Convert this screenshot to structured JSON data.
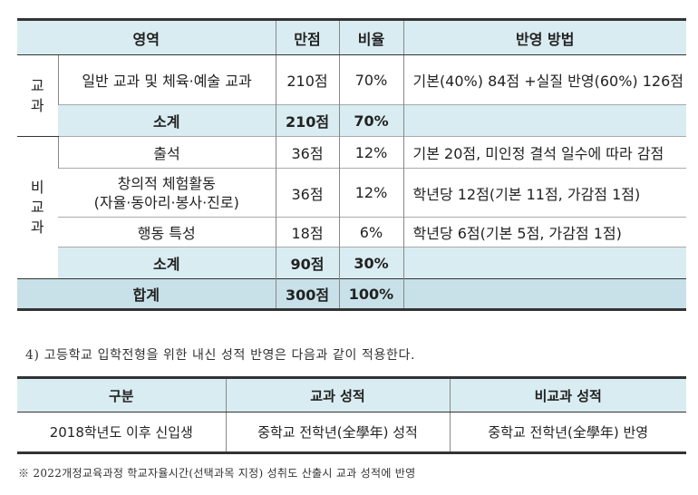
{
  "table1": {
    "headers": {
      "area": "영역",
      "full_score": "만점",
      "ratio": "비율",
      "method": "반영 방법"
    },
    "group_subject": [
      "교",
      "과"
    ],
    "group_nonsubject": [
      "비",
      "교",
      "과"
    ],
    "rows": {
      "general": {
        "label": "일반 교과 및 체육·예술 교과",
        "score": "210점",
        "ratio": "70%",
        "method": "기본(40%) 84점 +실질 반영(60%) 126점"
      },
      "subtotal1": {
        "label": "소계",
        "score": "210점",
        "ratio": "70%",
        "method": ""
      },
      "attendance": {
        "label": "출석",
        "score": "36점",
        "ratio": "12%",
        "method": "기본 20점, 미인정 결석 일수에 따라 감점"
      },
      "creative": {
        "label_line1": "창의적 체험활동",
        "label_line2": "(자율·동아리·봉사·진로)",
        "score": "36점",
        "ratio": "12%",
        "method": "학년당 12점(기본 11점, 가감점 1점)"
      },
      "behavior": {
        "label": "행동 특성",
        "score": "18점",
        "ratio": "6%",
        "method": "학년당 6점(기본 5점, 가감점 1점)"
      },
      "subtotal2": {
        "label": "소계",
        "score": "90점",
        "ratio": "30%",
        "method": ""
      },
      "total": {
        "label": "합계",
        "score": "300점",
        "ratio": "100%",
        "method": ""
      }
    }
  },
  "note4": "4) 고등학교 입학전형을 위한 내신 성적 반영은 다음과 같이 적용한다.",
  "table2": {
    "headers": {
      "category": "구분",
      "subject": "교과 성적",
      "nonsubject": "비교과 성적"
    },
    "row": {
      "category": "2018학년도 이후 신입생",
      "subject": "중학교 전학년(全學年) 성적",
      "nonsubject": "중학교 전학년(全學年) 반영"
    }
  },
  "footnote": "※ 2022개정교육과정 학교자율시간(선택과목 지정) 성취도 산출시 교과 성적에 반영"
}
